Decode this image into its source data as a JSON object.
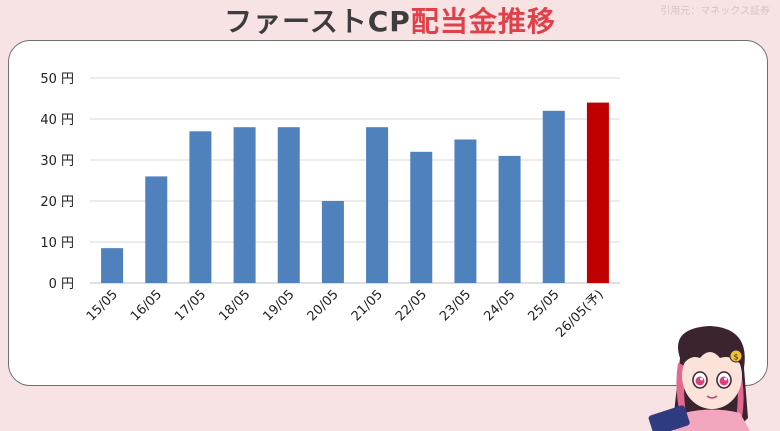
{
  "header": {
    "title_part1": "ファーストCP",
    "title_part2": "配当金推移",
    "source": "引用元：マネックス証券"
  },
  "colors": {
    "background": "#f7e3e3",
    "bar": "#4f81bd",
    "bar_forecast": "#c00000",
    "title_accent": "#e0404a"
  },
  "chart_data": {
    "type": "bar",
    "categories": [
      "15/05",
      "16/05",
      "17/05",
      "18/05",
      "19/05",
      "20/05",
      "21/05",
      "22/05",
      "23/05",
      "24/05",
      "25/05",
      "26/05(予)"
    ],
    "values": [
      8.5,
      26,
      37,
      38,
      38,
      20,
      38,
      32,
      35,
      31,
      42,
      44
    ],
    "forecast_index": 11,
    "yticks": [
      "0 円",
      "10 円",
      "20 円",
      "30 円",
      "40 円",
      "50 円"
    ],
    "ylim": [
      0,
      50
    ],
    "grid": true
  }
}
